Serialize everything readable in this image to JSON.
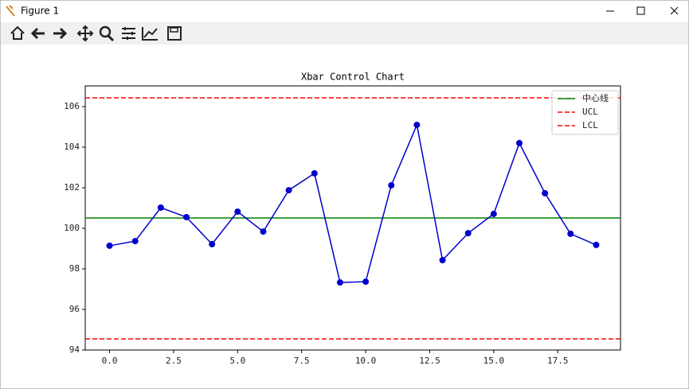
{
  "window_title": "Figure 1",
  "chart_data": {
    "type": "line",
    "title": "Xbar Control Chart",
    "x": [
      0,
      1,
      2,
      3,
      4,
      5,
      6,
      7,
      8,
      9,
      10,
      11,
      12,
      13,
      14,
      15,
      16,
      17,
      18,
      19
    ],
    "series": [
      {
        "color": "#0000cc",
        "values": [
          99.14,
          99.37,
          101.02,
          100.55,
          99.22,
          100.82,
          99.84,
          101.88,
          102.71,
          97.33,
          97.37,
          102.12,
          105.1,
          98.43,
          99.76,
          100.71,
          104.2,
          101.73,
          99.73,
          99.18
        ]
      }
    ],
    "hlines": [
      {
        "name": "中心线",
        "value": 100.51,
        "color": "#008000",
        "style": "solid"
      },
      {
        "name": "UCL",
        "value": 106.43,
        "color": "#ff0000",
        "style": "dashed"
      },
      {
        "name": "LCL",
        "value": 94.55,
        "color": "#ff0000",
        "style": "dashed"
      }
    ],
    "xlim": [
      -0.95,
      19.95
    ],
    "ylim": [
      94,
      107.02
    ],
    "xticks": [
      {
        "value": 0,
        "label": "0.0"
      },
      {
        "value": 2.5,
        "label": "2.5"
      },
      {
        "value": 5,
        "label": "5.0"
      },
      {
        "value": 7.5,
        "label": "7.5"
      },
      {
        "value": 10,
        "label": "10.0"
      },
      {
        "value": 12.5,
        "label": "12.5"
      },
      {
        "value": 15,
        "label": "15.0"
      },
      {
        "value": 17.5,
        "label": "17.5"
      }
    ],
    "yticks": [
      94,
      96,
      98,
      100,
      102,
      104,
      106
    ],
    "legend": "upper right"
  }
}
